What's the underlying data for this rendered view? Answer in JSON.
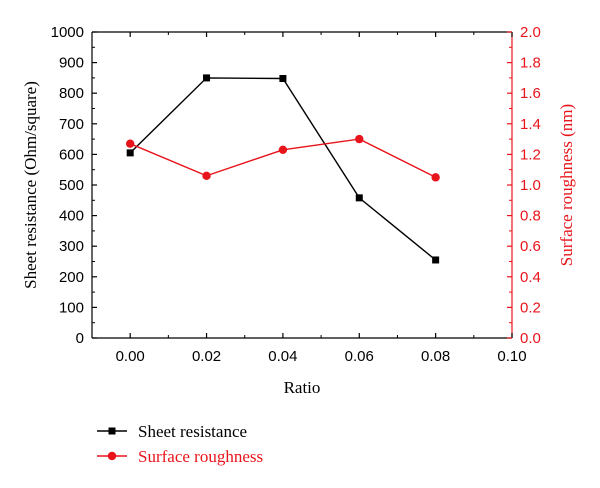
{
  "chart_data": {
    "type": "line",
    "x": [
      0.0,
      0.02,
      0.04,
      0.06,
      0.08
    ],
    "xlabel": "Ratio",
    "xlim": [
      -0.01,
      0.1
    ],
    "xticks": [
      "0.00",
      "0.02",
      "0.04",
      "0.06",
      "0.08",
      "0.10"
    ],
    "xtick_values": [
      0.0,
      0.02,
      0.04,
      0.06,
      0.08,
      0.1
    ],
    "ylabel_left": "Sheet resistance (Ohm/square)",
    "ylim_left": [
      0,
      1000
    ],
    "yticks_left": [
      "0",
      "100",
      "200",
      "300",
      "400",
      "500",
      "600",
      "700",
      "800",
      "900",
      "1000"
    ],
    "ytick_values_left": [
      0,
      100,
      200,
      300,
      400,
      500,
      600,
      700,
      800,
      900,
      1000
    ],
    "ylabel_right": "Surface roughness (nm)",
    "ylim_right": [
      0.0,
      2.0
    ],
    "yticks_right": [
      "0.0",
      "0.2",
      "0.4",
      "0.6",
      "0.8",
      "1.0",
      "1.2",
      "1.4",
      "1.6",
      "1.8",
      "2.0"
    ],
    "ytick_values_right": [
      0.0,
      0.2,
      0.4,
      0.6,
      0.8,
      1.0,
      1.2,
      1.4,
      1.6,
      1.8,
      2.0
    ],
    "grid": false,
    "legend_position": "bottom-left",
    "series": [
      {
        "name": "Sheet resistance",
        "axis": "left",
        "color": "#000000",
        "marker": "square",
        "values": [
          605,
          850,
          848,
          458,
          255
        ]
      },
      {
        "name": "Surface roughness",
        "axis": "right",
        "color": "#e8141b",
        "marker": "circle",
        "values": [
          1.27,
          1.06,
          1.23,
          1.3,
          1.05
        ]
      }
    ]
  }
}
